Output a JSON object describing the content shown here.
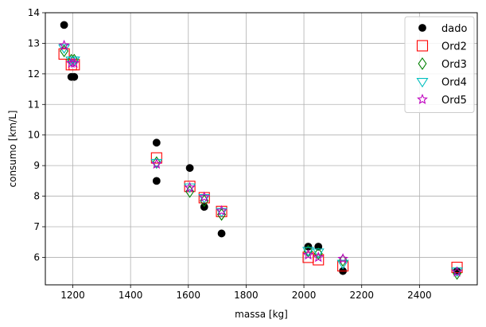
{
  "chart_data": {
    "type": "scatter",
    "xlabel": "massa [kg]",
    "ylabel": "consumo [km/L]",
    "xlim": [
      1105,
      2600
    ],
    "ylim": [
      5.1,
      14
    ],
    "xticks": [
      1200,
      1400,
      1600,
      1800,
      2000,
      2200,
      2400
    ],
    "yticks": [
      6,
      7,
      8,
      9,
      10,
      11,
      12,
      13,
      14
    ],
    "grid": true,
    "legend_position": "top-right",
    "series": [
      {
        "name": "dado",
        "marker": "circle",
        "color": "#000000",
        "filled": true,
        "points": [
          [
            1170,
            13.6
          ],
          [
            1195,
            11.9
          ],
          [
            1205,
            11.9
          ],
          [
            1490,
            9.75
          ],
          [
            1490,
            8.5
          ],
          [
            1605,
            8.92
          ],
          [
            1655,
            7.65
          ],
          [
            1715,
            6.78
          ],
          [
            2015,
            6.35
          ],
          [
            2050,
            6.35
          ],
          [
            2135,
            5.55
          ],
          [
            2530,
            5.55
          ]
        ]
      },
      {
        "name": "Ord2",
        "marker": "square",
        "color": "#ff0000",
        "filled": false,
        "points": [
          [
            1170,
            12.65
          ],
          [
            1195,
            12.3
          ],
          [
            1205,
            12.3
          ],
          [
            1490,
            9.25
          ],
          [
            1605,
            8.32
          ],
          [
            1655,
            7.95
          ],
          [
            1715,
            7.5
          ],
          [
            2015,
            6.0
          ],
          [
            2050,
            5.92
          ],
          [
            2135,
            5.72
          ],
          [
            2530,
            5.67
          ]
        ]
      },
      {
        "name": "Ord3",
        "marker": "diamond",
        "color": "#008000",
        "filled": false,
        "points": [
          [
            1170,
            12.75
          ],
          [
            1195,
            12.45
          ],
          [
            1205,
            12.45
          ],
          [
            1490,
            9.1
          ],
          [
            1605,
            8.15
          ],
          [
            1655,
            7.85
          ],
          [
            1715,
            7.4
          ],
          [
            2015,
            6.2
          ],
          [
            2050,
            6.12
          ],
          [
            2135,
            5.9
          ],
          [
            2530,
            5.47
          ]
        ]
      },
      {
        "name": "Ord4",
        "marker": "triangle-down",
        "color": "#00bfbf",
        "filled": false,
        "points": [
          [
            1170,
            12.85
          ],
          [
            1195,
            12.45
          ],
          [
            1205,
            12.45
          ],
          [
            1490,
            9.1
          ],
          [
            1605,
            8.3
          ],
          [
            1655,
            7.95
          ],
          [
            1715,
            7.5
          ],
          [
            2015,
            6.22
          ],
          [
            2050,
            6.17
          ],
          [
            2135,
            5.8
          ],
          [
            2530,
            5.55
          ]
        ]
      },
      {
        "name": "Ord5",
        "marker": "star",
        "color": "#bf00bf",
        "filled": false,
        "points": [
          [
            1170,
            12.93
          ],
          [
            1195,
            12.35
          ],
          [
            1205,
            12.35
          ],
          [
            1490,
            9.05
          ],
          [
            1605,
            8.28
          ],
          [
            1655,
            7.97
          ],
          [
            1715,
            7.52
          ],
          [
            2015,
            6.08
          ],
          [
            2050,
            6.0
          ],
          [
            2135,
            5.95
          ],
          [
            2530,
            5.52
          ]
        ]
      }
    ]
  }
}
